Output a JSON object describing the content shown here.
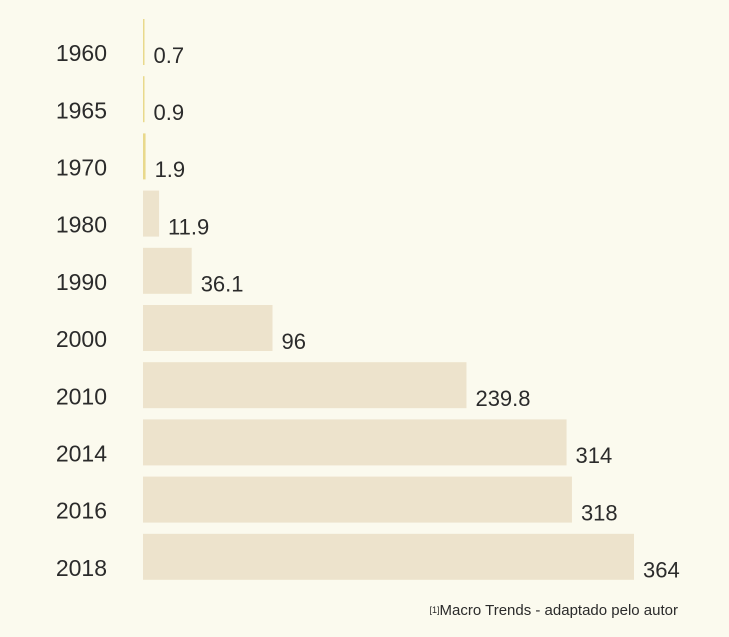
{
  "chart_data": {
    "type": "bar",
    "orientation": "horizontal",
    "categories": [
      "1960",
      "1965",
      "1970",
      "1980",
      "1990",
      "2000",
      "2010",
      "2014",
      "2016",
      "2018"
    ],
    "values": [
      0.7,
      0.9,
      1.9,
      11.9,
      36.1,
      96,
      239.8,
      314,
      318,
      364
    ],
    "colors": [
      "#e9d98c",
      "#e9d98c",
      "#e9d98c",
      "#ede3cc",
      "#ede3cc",
      "#ede3cc",
      "#ede3cc",
      "#ede3cc",
      "#ede3cc",
      "#ede3cc"
    ],
    "source_ref": "[1]",
    "source": "Macro Trends - adaptado pelo autor"
  }
}
